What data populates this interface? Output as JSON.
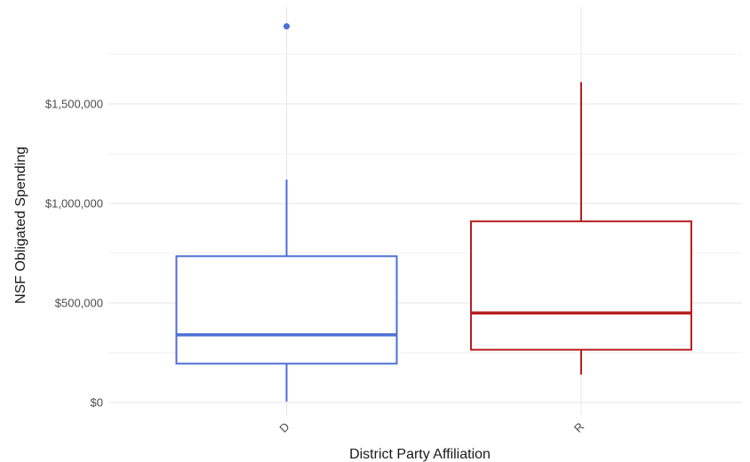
{
  "chart_data": {
    "type": "box",
    "title": "",
    "xlabel": "District Party Affiliation",
    "ylabel": "NSF Obligated Spending",
    "categories": [
      "D",
      "R"
    ],
    "ylim": [
      -40000,
      1950000
    ],
    "y_ticks": [
      {
        "value": 0,
        "label": "$0"
      },
      {
        "value": 500000,
        "label": "$500,000"
      },
      {
        "value": 1000000,
        "label": "$1,000,000"
      },
      {
        "value": 1500000,
        "label": "$1,500,000"
      }
    ],
    "y_minor_ticks": [
      250000,
      750000,
      1250000,
      1750000
    ],
    "grid": true,
    "series": [
      {
        "category": "D",
        "color": "#4d6fd6",
        "min": 5000,
        "q1": 195000,
        "median": 340000,
        "q3": 735000,
        "max": 1120000,
        "outliers": [
          1890000
        ]
      },
      {
        "category": "R",
        "color": "#b81f1f",
        "min": 140000,
        "q1": 265000,
        "median": 450000,
        "q3": 910000,
        "max": 1610000,
        "outliers": []
      }
    ]
  }
}
